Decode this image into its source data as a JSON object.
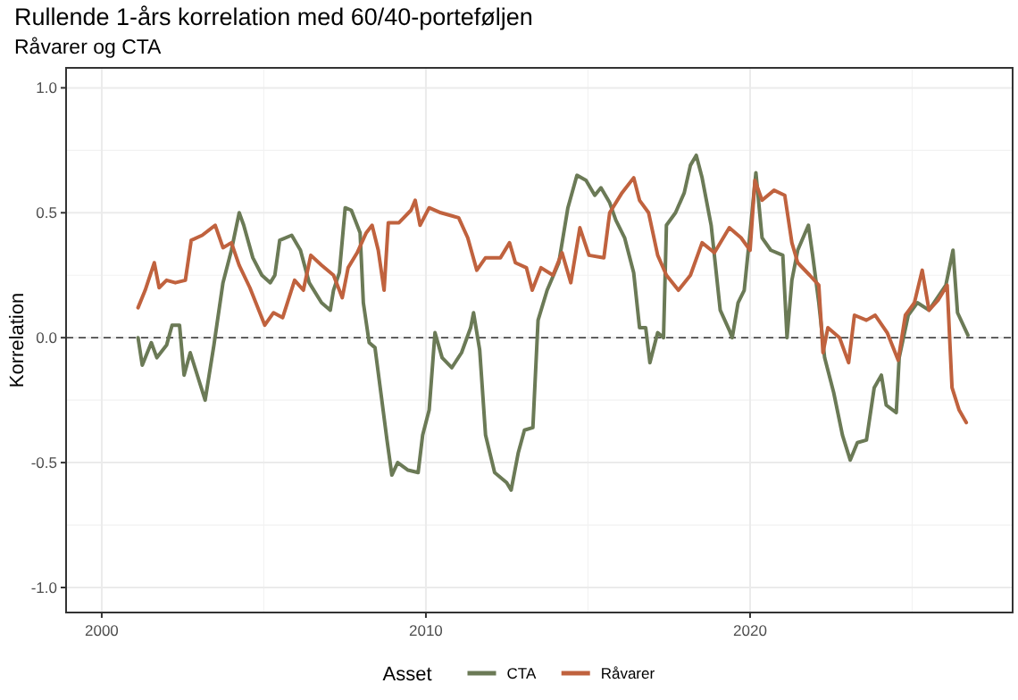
{
  "chart_data": {
    "type": "line",
    "title": "Rullende 1-års korrelation med 60/40-porteføljen",
    "subtitle": "Råvarer og CTA",
    "ylabel": "Korrelation",
    "legend_title": "Asset",
    "legend": "bottom",
    "grid": true,
    "line_style": "solid",
    "marker": "none",
    "xlim": [
      1998.9,
      2028.1
    ],
    "xticks": [
      2000,
      2010,
      2020
    ],
    "ylim": [
      -1.1,
      1.08
    ],
    "yticks": [
      {
        "value": -1,
        "label": "-1.0"
      },
      {
        "value": -0.5,
        "label": "-0.5"
      },
      {
        "value": 0,
        "label": "0.0"
      },
      {
        "value": 0.5,
        "label": "0.5"
      },
      {
        "value": 1,
        "label": "1.0"
      }
    ],
    "ref_lines": [
      {
        "axis": "y",
        "value": 0,
        "line_style": "dashed",
        "color": "#333333"
      }
    ],
    "series": [
      {
        "name": "CTA",
        "color": "#6b7a56",
        "x": [
          2001.12,
          2001.25,
          2001.53,
          2001.7,
          2002.0,
          2002.17,
          2002.4,
          2002.54,
          2002.73,
          2003.19,
          2003.46,
          2003.74,
          2004.0,
          2004.24,
          2004.38,
          2004.66,
          2004.94,
          2005.2,
          2005.34,
          2005.49,
          2005.86,
          2006.13,
          2006.4,
          2006.78,
          2007.05,
          2007.15,
          2007.33,
          2007.51,
          2007.7,
          2007.97,
          2008.07,
          2008.25,
          2008.43,
          2008.62,
          2008.8,
          2008.95,
          2009.13,
          2009.45,
          2009.76,
          2009.9,
          2010.1,
          2010.28,
          2010.5,
          2010.8,
          2011.1,
          2011.38,
          2011.47,
          2011.66,
          2011.84,
          2012.12,
          2012.49,
          2012.63,
          2012.85,
          2013.04,
          2013.3,
          2013.46,
          2013.74,
          2014.1,
          2014.38,
          2014.66,
          2014.94,
          2015.21,
          2015.4,
          2015.67,
          2015.86,
          2016.13,
          2016.41,
          2016.59,
          2016.78,
          2016.91,
          2017.15,
          2017.33,
          2017.42,
          2017.7,
          2017.97,
          2018.16,
          2018.34,
          2018.52,
          2018.8,
          2019.08,
          2019.36,
          2019.45,
          2019.63,
          2019.82,
          2020.0,
          2020.18,
          2020.37,
          2020.64,
          2021.01,
          2021.14,
          2021.29,
          2021.47,
          2021.8,
          2021.93,
          2022.12,
          2022.3,
          2022.58,
          2022.85,
          2023.09,
          2023.31,
          2023.59,
          2023.83,
          2024.05,
          2024.2,
          2024.51,
          2024.6,
          2024.88,
          2025.16,
          2025.52,
          2026.04,
          2026.26,
          2026.4,
          2026.72
        ],
        "values": [
          0.0,
          -0.11,
          -0.02,
          -0.08,
          -0.03,
          0.05,
          0.05,
          -0.15,
          -0.06,
          -0.25,
          -0.03,
          0.22,
          0.35,
          0.5,
          0.45,
          0.32,
          0.25,
          0.22,
          0.25,
          0.39,
          0.41,
          0.35,
          0.22,
          0.14,
          0.11,
          0.19,
          0.26,
          0.52,
          0.51,
          0.42,
          0.14,
          -0.02,
          -0.04,
          -0.23,
          -0.41,
          -0.55,
          -0.5,
          -0.53,
          -0.54,
          -0.39,
          -0.29,
          0.02,
          -0.08,
          -0.12,
          -0.06,
          0.04,
          0.1,
          -0.05,
          -0.39,
          -0.54,
          -0.58,
          -0.61,
          -0.46,
          -0.37,
          -0.36,
          0.07,
          0.19,
          0.3,
          0.52,
          0.65,
          0.63,
          0.57,
          0.6,
          0.54,
          0.47,
          0.4,
          0.26,
          0.04,
          0.04,
          -0.1,
          0.02,
          0.0,
          0.45,
          0.5,
          0.58,
          0.69,
          0.73,
          0.64,
          0.45,
          0.11,
          0.03,
          0.0,
          0.14,
          0.19,
          0.42,
          0.66,
          0.4,
          0.35,
          0.33,
          0.0,
          0.23,
          0.35,
          0.45,
          0.33,
          0.14,
          -0.08,
          -0.22,
          -0.39,
          -0.49,
          -0.42,
          -0.41,
          -0.2,
          -0.15,
          -0.27,
          -0.3,
          -0.08,
          0.09,
          0.14,
          0.11,
          0.21,
          0.35,
          0.1,
          0.01
        ]
      },
      {
        "name": "Råvarer",
        "color": "#c0623e",
        "x": [
          2001.12,
          2001.34,
          2001.62,
          2001.77,
          2002.0,
          2002.27,
          2002.58,
          2002.76,
          2003.1,
          2003.5,
          2003.74,
          2004.0,
          2004.24,
          2004.57,
          2005.03,
          2005.3,
          2005.58,
          2005.95,
          2006.22,
          2006.45,
          2006.78,
          2007.15,
          2007.42,
          2007.6,
          2007.88,
          2008.16,
          2008.34,
          2008.53,
          2008.71,
          2008.84,
          2009.17,
          2009.54,
          2009.67,
          2009.82,
          2010.1,
          2010.46,
          2011.01,
          2011.29,
          2011.57,
          2011.84,
          2012.3,
          2012.58,
          2012.76,
          2013.1,
          2013.28,
          2013.55,
          2013.92,
          2014.2,
          2014.47,
          2014.75,
          2015.03,
          2015.49,
          2015.67,
          2016.05,
          2016.41,
          2016.59,
          2016.87,
          2017.15,
          2017.42,
          2017.79,
          2018.16,
          2018.52,
          2018.9,
          2019.36,
          2019.72,
          2020.0,
          2020.15,
          2020.37,
          2020.74,
          2021.07,
          2021.29,
          2021.47,
          2021.84,
          2022.12,
          2022.25,
          2022.4,
          2022.76,
          2023.04,
          2023.22,
          2023.59,
          2023.86,
          2024.23,
          2024.57,
          2024.79,
          2025.07,
          2025.31,
          2025.52,
          2025.8,
          2026.08,
          2026.23,
          2026.45,
          2026.67
        ],
        "values": [
          0.12,
          0.19,
          0.3,
          0.2,
          0.23,
          0.22,
          0.23,
          0.39,
          0.41,
          0.45,
          0.36,
          0.38,
          0.29,
          0.2,
          0.05,
          0.1,
          0.08,
          0.23,
          0.19,
          0.33,
          0.29,
          0.25,
          0.16,
          0.28,
          0.34,
          0.42,
          0.45,
          0.35,
          0.19,
          0.46,
          0.46,
          0.51,
          0.55,
          0.45,
          0.52,
          0.5,
          0.48,
          0.4,
          0.27,
          0.32,
          0.32,
          0.38,
          0.3,
          0.28,
          0.19,
          0.28,
          0.25,
          0.34,
          0.22,
          0.44,
          0.33,
          0.32,
          0.5,
          0.58,
          0.64,
          0.55,
          0.5,
          0.33,
          0.25,
          0.19,
          0.25,
          0.38,
          0.34,
          0.44,
          0.4,
          0.35,
          0.63,
          0.55,
          0.59,
          0.57,
          0.38,
          0.3,
          0.25,
          0.21,
          -0.06,
          0.04,
          0.0,
          -0.1,
          0.09,
          0.07,
          0.09,
          0.02,
          -0.09,
          0.09,
          0.14,
          0.27,
          0.11,
          0.15,
          0.21,
          -0.2,
          -0.29,
          -0.34
        ]
      }
    ]
  }
}
